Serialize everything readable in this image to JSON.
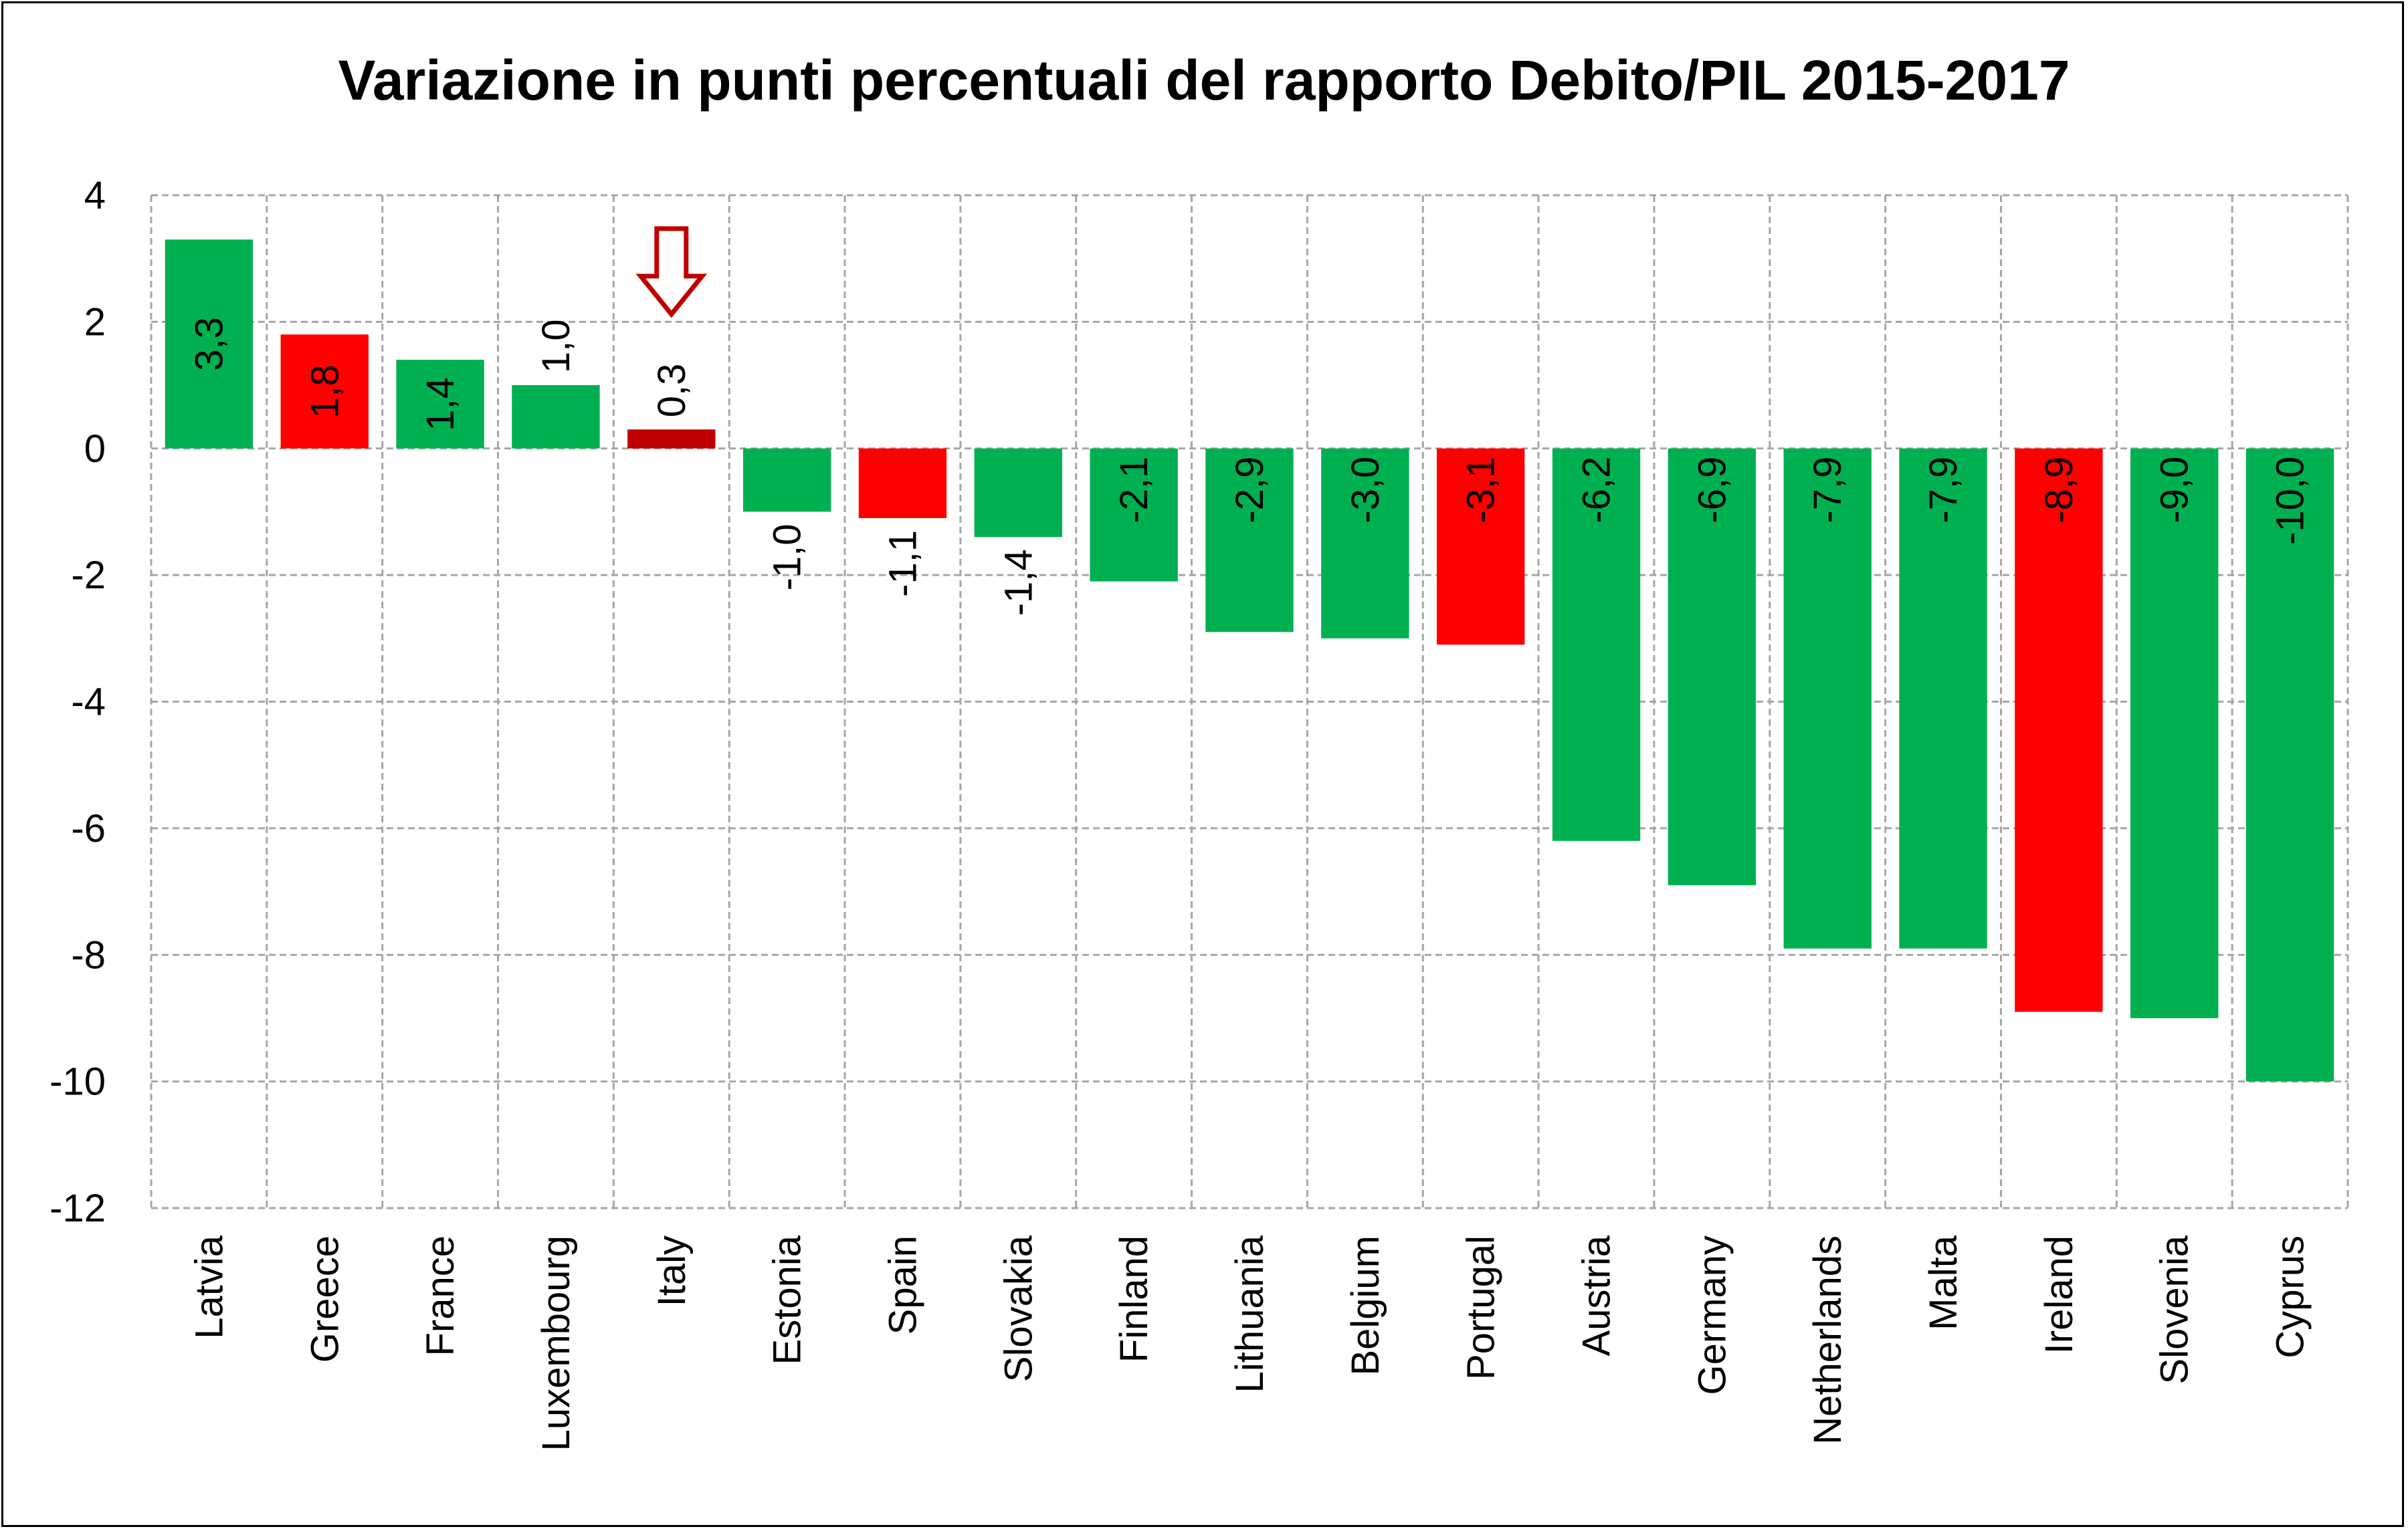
{
  "chart_data": {
    "type": "bar",
    "title": "Variazione in punti percentuali del rapporto Debito/PIL 2015-2017",
    "xlabel": "",
    "ylabel": "",
    "ylim": [
      -12,
      4
    ],
    "yticks": [
      4,
      2,
      0,
      -2,
      -4,
      -6,
      -8,
      -10,
      -12
    ],
    "grid": true,
    "legend": "none",
    "categories": [
      "Latvia",
      "Greece",
      "France",
      "Luxembourg",
      "Italy",
      "Estonia",
      "Spain",
      "Slovakia",
      "Finland",
      "Lithuania",
      "Belgium",
      "Portugal",
      "Austria",
      "Germany",
      "Netherlands",
      "Malta",
      "Ireland",
      "Slovenia",
      "Cyprus"
    ],
    "values": [
      3.3,
      1.8,
      1.4,
      1.0,
      0.3,
      -1.0,
      -1.1,
      -1.4,
      -2.1,
      -2.9,
      -3.0,
      -3.1,
      -6.2,
      -6.9,
      -7.9,
      -7.9,
      -8.9,
      -9.0,
      -10.0
    ],
    "data_labels": [
      "3,3",
      "1,8",
      "1,4",
      "1,0",
      "0,3",
      "-1,0",
      "-1,1",
      "-1,4",
      "-2,1",
      "-2,9",
      "-3,0",
      "-3,1",
      "-6,2",
      "-6,9",
      "-7,9",
      "-7,9",
      "-8,9",
      "-9,0",
      "-10,0"
    ],
    "bar_colors": [
      "#00b050",
      "#ff0000",
      "#00b050",
      "#00b050",
      "#c00000",
      "#00b050",
      "#ff0000",
      "#00b050",
      "#00b050",
      "#00b050",
      "#00b050",
      "#ff0000",
      "#00b050",
      "#00b050",
      "#00b050",
      "#00b050",
      "#ff0000",
      "#00b050",
      "#00b050"
    ],
    "annotations": [
      {
        "type": "down-arrow",
        "category": "Italy",
        "color": "#c00000"
      }
    ]
  }
}
